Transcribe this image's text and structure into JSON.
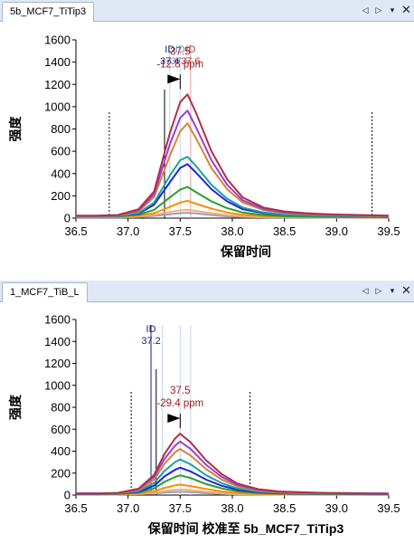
{
  "chart_data": [
    {
      "type": "line",
      "tab_label": "5b_MCF7_TiTip3",
      "xlabel": "保留时间",
      "ylabel": "强度",
      "xlim": [
        36.5,
        39.5
      ],
      "ylim": [
        0,
        1600
      ],
      "x_ticks": [
        "36.5",
        "37.0",
        "37.5",
        "38.0",
        "38.5",
        "39.0",
        "39.5"
      ],
      "y_ticks": [
        "0",
        "200",
        "400",
        "600",
        "800",
        "1000",
        "1200",
        "1400",
        "1600"
      ],
      "x": [
        36.5,
        36.7,
        36.9,
        37.1,
        37.25,
        37.4,
        37.5,
        37.57,
        37.65,
        37.8,
        37.95,
        38.1,
        38.3,
        38.5,
        38.7,
        38.9,
        39.1,
        39.3,
        39.5
      ],
      "series": [
        {
          "color": "#9aa0b4",
          "values": [
            5,
            5,
            6,
            10,
            20,
            35,
            45,
            48,
            42,
            28,
            16,
            10,
            7,
            5,
            5,
            4,
            4,
            3,
            3
          ]
        },
        {
          "color": "#f2b07a",
          "values": [
            8,
            8,
            10,
            16,
            30,
            55,
            70,
            75,
            65,
            45,
            28,
            18,
            12,
            9,
            8,
            7,
            6,
            5,
            5
          ]
        },
        {
          "color": "#ff8c00",
          "values": [
            10,
            10,
            12,
            22,
            45,
            100,
            140,
            155,
            130,
            85,
            50,
            30,
            18,
            12,
            10,
            9,
            8,
            7,
            6
          ]
        },
        {
          "color": "#2a9d2a",
          "values": [
            12,
            12,
            15,
            30,
            75,
            185,
            255,
            280,
            235,
            150,
            90,
            50,
            28,
            18,
            14,
            12,
            10,
            9,
            8
          ]
        },
        {
          "color": "#2222dd",
          "values": [
            15,
            15,
            18,
            40,
            120,
            320,
            450,
            485,
            410,
            260,
            150,
            80,
            45,
            30,
            25,
            22,
            18,
            16,
            14
          ]
        },
        {
          "color": "#1aa3a3",
          "values": [
            14,
            14,
            18,
            45,
            140,
            380,
            520,
            550,
            470,
            300,
            175,
            95,
            50,
            32,
            26,
            22,
            19,
            16,
            14
          ]
        },
        {
          "color": "#d4843a",
          "values": [
            18,
            18,
            22,
            60,
            190,
            560,
            780,
            850,
            720,
            450,
            260,
            140,
            72,
            45,
            34,
            28,
            24,
            20,
            18
          ]
        },
        {
          "color": "#9b3dd6",
          "values": [
            20,
            20,
            25,
            70,
            215,
            660,
            900,
            965,
            820,
            520,
            300,
            160,
            82,
            52,
            40,
            32,
            28,
            24,
            20
          ]
        },
        {
          "color": "#b0304a",
          "values": [
            22,
            22,
            28,
            80,
            240,
            760,
            1040,
            1110,
            950,
            600,
            350,
            185,
            95,
            60,
            45,
            36,
            30,
            26,
            22
          ]
        }
      ],
      "boundaries": [
        36.82,
        37.35,
        39.34
      ],
      "id_lines": [
        {
          "x": 37.4,
          "color": "#b8d4ec",
          "label": "ID",
          "value": "37.4"
        },
        {
          "x": 37.5,
          "color": "#c8d8f0",
          "label": "ID",
          "value": "37.5"
        },
        {
          "x": 37.6,
          "color": "#e8a0a0",
          "label": "ID",
          "value": "37.6"
        }
      ],
      "id_value_colors": [
        "#1a237e",
        "#7a8ac0",
        "#c03030"
      ],
      "peak_annotation": {
        "rt": "37.5",
        "ppm": "-12.8 ppm",
        "color": "#a02020"
      },
      "peak_marker_x": 37.5,
      "peak_marker_y": 1110
    },
    {
      "type": "line",
      "tab_label": "1_MCF7_TiB_L",
      "xlabel": "保留时间 校准至  5b_MCF7_TiTip3",
      "ylabel": "强度",
      "xlim": [
        36.5,
        39.5
      ],
      "ylim": [
        0,
        1600
      ],
      "x_ticks": [
        "36.5",
        "37.0",
        "37.5",
        "38.0",
        "38.5",
        "39.0",
        "39.5"
      ],
      "y_ticks": [
        "0",
        "200",
        "400",
        "600",
        "800",
        "1000",
        "1200",
        "1400",
        "1600"
      ],
      "x": [
        36.5,
        36.7,
        36.9,
        37.1,
        37.25,
        37.35,
        37.45,
        37.5,
        37.6,
        37.75,
        37.9,
        38.05,
        38.25,
        38.45,
        38.7,
        38.9,
        39.1,
        39.3,
        39.5
      ],
      "series": [
        {
          "color": "#9aa0b4",
          "values": [
            4,
            4,
            5,
            8,
            14,
            22,
            28,
            30,
            26,
            17,
            10,
            6,
            5,
            4,
            4,
            3,
            3,
            3,
            3
          ]
        },
        {
          "color": "#f2b07a",
          "values": [
            5,
            5,
            6,
            10,
            20,
            36,
            48,
            52,
            45,
            30,
            18,
            11,
            8,
            6,
            5,
            5,
            4,
            4,
            4
          ]
        },
        {
          "color": "#ff8c00",
          "values": [
            6,
            6,
            8,
            15,
            35,
            65,
            88,
            95,
            82,
            55,
            33,
            19,
            11,
            8,
            7,
            6,
            6,
            5,
            5
          ]
        },
        {
          "color": "#2a9d2a",
          "values": [
            7,
            7,
            10,
            22,
            60,
            120,
            165,
            180,
            155,
            100,
            60,
            34,
            18,
            12,
            10,
            9,
            8,
            7,
            7
          ]
        },
        {
          "color": "#2222dd",
          "values": [
            9,
            9,
            12,
            30,
            85,
            170,
            230,
            250,
            215,
            140,
            84,
            48,
            26,
            16,
            13,
            12,
            11,
            10,
            9
          ]
        },
        {
          "color": "#1aa3a3",
          "values": [
            10,
            10,
            14,
            36,
            110,
            220,
            300,
            325,
            280,
            180,
            108,
            60,
            32,
            20,
            16,
            14,
            12,
            11,
            10
          ]
        },
        {
          "color": "#d4843a",
          "values": [
            12,
            12,
            16,
            45,
            140,
            285,
            390,
            420,
            360,
            235,
            140,
            78,
            40,
            25,
            19,
            16,
            14,
            12,
            12
          ]
        },
        {
          "color": "#9b3dd6",
          "values": [
            14,
            14,
            18,
            52,
            165,
            330,
            450,
            488,
            420,
            275,
            165,
            92,
            47,
            29,
            22,
            18,
            16,
            14,
            13
          ]
        },
        {
          "color": "#b0304a",
          "values": [
            16,
            16,
            20,
            58,
            185,
            375,
            515,
            560,
            480,
            315,
            190,
            105,
            54,
            33,
            25,
            20,
            18,
            16,
            15
          ]
        }
      ],
      "boundaries": [
        37.03,
        37.27,
        38.17
      ],
      "id_lines": [
        {
          "x": 37.22,
          "color": "#1a237e",
          "label": "ID",
          "value": "37.2"
        },
        {
          "x": 37.33,
          "color": "#b8d4ec",
          "label": "",
          "value": ""
        },
        {
          "x": 37.5,
          "color": "#c8d8f0",
          "label": "",
          "value": ""
        },
        {
          "x": 37.6,
          "color": "#c8d8f0",
          "label": "",
          "value": ""
        }
      ],
      "id_value_colors": [
        "#1a237e"
      ],
      "peak_annotation": {
        "rt": "37.5",
        "ppm": "-29.4 ppm",
        "color": "#a02020"
      },
      "peak_marker_x": 37.5,
      "peak_marker_y": 560
    }
  ],
  "icons": {
    "prev": "triangle-left-icon",
    "next": "triangle-right-icon",
    "menu": "chevron-down-icon",
    "close": "close-icon"
  },
  "controls": {
    "prev": "◁",
    "next": "▷",
    "menu": "▾",
    "close": "✕"
  }
}
